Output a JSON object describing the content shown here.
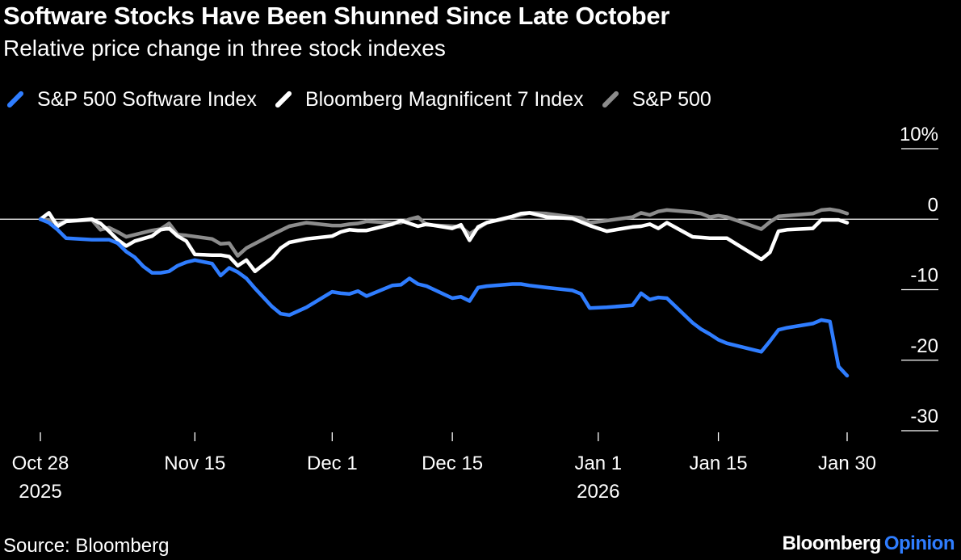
{
  "title": "Software Stocks Have Been Shunned Since Late October",
  "subtitle": "Relative price change in three stock indexes",
  "source": "Source: Bloomberg",
  "brand": {
    "name": "Bloomberg",
    "accent": "Opinion",
    "accent_color": "#2f7dff"
  },
  "chart_data": {
    "type": "line",
    "title": "Software Stocks Have Been Shunned Since Late October",
    "subtitle": "Relative price change in three stock indexes",
    "ylim": [
      -30,
      10
    ],
    "yticks": [
      10,
      0,
      -10,
      -20,
      -30
    ],
    "ytick_labels": [
      "10%",
      "0",
      "-10",
      "-20",
      "-30"
    ],
    "xlim": [
      "2025-10-28",
      "2026-01-30"
    ],
    "xticks": [
      {
        "date": "2025-10-28",
        "label": [
          "Oct 28",
          "2025"
        ]
      },
      {
        "date": "2025-11-15",
        "label": [
          "Nov 15"
        ]
      },
      {
        "date": "2025-12-01",
        "label": [
          "Dec 1"
        ]
      },
      {
        "date": "2025-12-15",
        "label": [
          "Dec 15"
        ]
      },
      {
        "date": "2026-01-01",
        "label": [
          "Jan 1",
          "2026"
        ]
      },
      {
        "date": "2026-01-15",
        "label": [
          "Jan 15"
        ]
      },
      {
        "date": "2026-01-30",
        "label": [
          "Jan 30"
        ]
      }
    ],
    "grid": false,
    "legend_position": "top-left",
    "series": [
      {
        "name": "S&P 500 Software Index",
        "color": "#2f7dff",
        "points": [
          [
            "2025-10-28",
            0.0
          ],
          [
            "2025-10-29",
            -0.5
          ],
          [
            "2025-10-30",
            -1.5
          ],
          [
            "2025-10-31",
            -2.7
          ],
          [
            "2025-11-03",
            -2.9
          ],
          [
            "2025-11-04",
            -2.9
          ],
          [
            "2025-11-05",
            -2.9
          ],
          [
            "2025-11-06",
            -3.4
          ],
          [
            "2025-11-07",
            -4.6
          ],
          [
            "2025-11-08",
            -5.4
          ],
          [
            "2025-11-09",
            -6.7
          ],
          [
            "2025-11-10",
            -7.6
          ],
          [
            "2025-11-11",
            -7.6
          ],
          [
            "2025-11-12",
            -7.4
          ],
          [
            "2025-11-13",
            -6.6
          ],
          [
            "2025-11-14",
            -6.1
          ],
          [
            "2025-11-15",
            -5.8
          ],
          [
            "2025-11-17",
            -6.3
          ],
          [
            "2025-11-18",
            -8.0
          ],
          [
            "2025-11-19",
            -6.9
          ],
          [
            "2025-11-20",
            -7.5
          ],
          [
            "2025-11-21",
            -8.4
          ],
          [
            "2025-11-22",
            -9.8
          ],
          [
            "2025-11-24",
            -12.4
          ],
          [
            "2025-11-25",
            -13.4
          ],
          [
            "2025-11-26",
            -13.6
          ],
          [
            "2025-11-28",
            -12.5
          ],
          [
            "2025-12-01",
            -10.3
          ],
          [
            "2025-12-02",
            -10.5
          ],
          [
            "2025-12-03",
            -10.6
          ],
          [
            "2025-12-04",
            -10.2
          ],
          [
            "2025-12-05",
            -10.9
          ],
          [
            "2025-12-08",
            -9.4
          ],
          [
            "2025-12-09",
            -9.3
          ],
          [
            "2025-12-10",
            -8.4
          ],
          [
            "2025-12-11",
            -9.2
          ],
          [
            "2025-12-12",
            -9.5
          ],
          [
            "2025-12-15",
            -11.2
          ],
          [
            "2025-12-16",
            -11.0
          ],
          [
            "2025-12-17",
            -11.6
          ],
          [
            "2025-12-18",
            -9.7
          ],
          [
            "2025-12-19",
            -9.5
          ],
          [
            "2025-12-22",
            -9.2
          ],
          [
            "2025-12-23",
            -9.2
          ],
          [
            "2025-12-24",
            -9.4
          ],
          [
            "2025-12-26",
            -9.7
          ],
          [
            "2025-12-29",
            -10.1
          ],
          [
            "2025-12-30",
            -10.6
          ],
          [
            "2025-12-31",
            -12.6
          ],
          [
            "2026-01-02",
            -12.5
          ],
          [
            "2026-01-05",
            -12.2
          ],
          [
            "2026-01-06",
            -10.5
          ],
          [
            "2026-01-07",
            -11.4
          ],
          [
            "2026-01-08",
            -11.1
          ],
          [
            "2026-01-09",
            -11.2
          ],
          [
            "2026-01-12",
            -14.7
          ],
          [
            "2026-01-13",
            -15.6
          ],
          [
            "2026-01-14",
            -16.3
          ],
          [
            "2026-01-15",
            -17.1
          ],
          [
            "2026-01-16",
            -17.6
          ],
          [
            "2026-01-20",
            -18.8
          ],
          [
            "2026-01-21",
            -17.3
          ],
          [
            "2026-01-22",
            -15.7
          ],
          [
            "2026-01-23",
            -15.4
          ],
          [
            "2026-01-26",
            -14.8
          ],
          [
            "2026-01-27",
            -14.3
          ],
          [
            "2026-01-28",
            -14.5
          ],
          [
            "2026-01-29",
            -20.9
          ],
          [
            "2026-01-30",
            -22.2
          ]
        ]
      },
      {
        "name": "Bloomberg Magnificent 7 Index",
        "color": "#ffffff",
        "points": [
          [
            "2025-10-28",
            0.0
          ],
          [
            "2025-10-29",
            0.9
          ],
          [
            "2025-10-30",
            -1.0
          ],
          [
            "2025-10-31",
            -0.3
          ],
          [
            "2025-11-03",
            0.0
          ],
          [
            "2025-11-04",
            -0.6
          ],
          [
            "2025-11-05",
            -1.7
          ],
          [
            "2025-11-06",
            -2.9
          ],
          [
            "2025-11-07",
            -3.8
          ],
          [
            "2025-11-08",
            -3.1
          ],
          [
            "2025-11-10",
            -2.4
          ],
          [
            "2025-11-11",
            -1.5
          ],
          [
            "2025-11-12",
            -1.3
          ],
          [
            "2025-11-13",
            -2.4
          ],
          [
            "2025-11-14",
            -3.1
          ],
          [
            "2025-11-15",
            -5.0
          ],
          [
            "2025-11-17",
            -5.1
          ],
          [
            "2025-11-18",
            -5.1
          ],
          [
            "2025-11-19",
            -5.3
          ],
          [
            "2025-11-20",
            -6.6
          ],
          [
            "2025-11-21",
            -5.8
          ],
          [
            "2025-11-22",
            -7.4
          ],
          [
            "2025-11-24",
            -5.5
          ],
          [
            "2025-11-25",
            -4.1
          ],
          [
            "2025-11-26",
            -3.3
          ],
          [
            "2025-11-28",
            -2.8
          ],
          [
            "2025-12-01",
            -2.4
          ],
          [
            "2025-12-02",
            -1.8
          ],
          [
            "2025-12-03",
            -1.5
          ],
          [
            "2025-12-04",
            -1.6
          ],
          [
            "2025-12-05",
            -1.6
          ],
          [
            "2025-12-08",
            -0.7
          ],
          [
            "2025-12-09",
            -0.2
          ],
          [
            "2025-12-10",
            -0.6
          ],
          [
            "2025-12-11",
            -1.0
          ],
          [
            "2025-12-12",
            -0.7
          ],
          [
            "2025-12-15",
            -1.3
          ],
          [
            "2025-12-16",
            -0.8
          ],
          [
            "2025-12-17",
            -3.0
          ],
          [
            "2025-12-18",
            -1.1
          ],
          [
            "2025-12-19",
            -0.5
          ],
          [
            "2025-12-22",
            0.4
          ],
          [
            "2025-12-23",
            0.8
          ],
          [
            "2025-12-24",
            0.9
          ],
          [
            "2025-12-26",
            0.3
          ],
          [
            "2025-12-29",
            0.1
          ],
          [
            "2025-12-30",
            -0.4
          ],
          [
            "2025-12-31",
            -0.9
          ],
          [
            "2026-01-02",
            -1.7
          ],
          [
            "2026-01-05",
            -1.1
          ],
          [
            "2026-01-06",
            -1.0
          ],
          [
            "2026-01-07",
            -0.7
          ],
          [
            "2026-01-08",
            -1.3
          ],
          [
            "2026-01-09",
            -0.5
          ],
          [
            "2026-01-12",
            -2.5
          ],
          [
            "2026-01-13",
            -2.6
          ],
          [
            "2026-01-14",
            -2.7
          ],
          [
            "2026-01-15",
            -2.7
          ],
          [
            "2026-01-16",
            -2.7
          ],
          [
            "2026-01-20",
            -5.7
          ],
          [
            "2026-01-21",
            -4.7
          ],
          [
            "2026-01-22",
            -1.7
          ],
          [
            "2026-01-23",
            -1.5
          ],
          [
            "2026-01-26",
            -1.3
          ],
          [
            "2026-01-27",
            -0.1
          ],
          [
            "2026-01-28",
            -0.1
          ],
          [
            "2026-01-29",
            -0.1
          ],
          [
            "2026-01-30",
            -0.5
          ]
        ]
      },
      {
        "name": "S&P 500",
        "color": "#8c8c8c",
        "points": [
          [
            "2025-10-28",
            0.0
          ],
          [
            "2025-10-29",
            -0.1
          ],
          [
            "2025-10-30",
            -0.6
          ],
          [
            "2025-10-31",
            -0.3
          ],
          [
            "2025-11-03",
            -0.1
          ],
          [
            "2025-11-04",
            -1.5
          ],
          [
            "2025-11-05",
            -1.2
          ],
          [
            "2025-11-06",
            -1.8
          ],
          [
            "2025-11-07",
            -2.5
          ],
          [
            "2025-11-10",
            -1.6
          ],
          [
            "2025-11-11",
            -1.4
          ],
          [
            "2025-11-12",
            -0.6
          ],
          [
            "2025-11-13",
            -2.2
          ],
          [
            "2025-11-14",
            -2.3
          ],
          [
            "2025-11-17",
            -2.8
          ],
          [
            "2025-11-18",
            -3.5
          ],
          [
            "2025-11-19",
            -3.4
          ],
          [
            "2025-11-20",
            -5.2
          ],
          [
            "2025-11-21",
            -4.1
          ],
          [
            "2025-11-24",
            -2.2
          ],
          [
            "2025-11-25",
            -1.6
          ],
          [
            "2025-11-26",
            -1.0
          ],
          [
            "2025-11-28",
            -0.5
          ],
          [
            "2025-12-01",
            -0.9
          ],
          [
            "2025-12-02",
            -0.9
          ],
          [
            "2025-12-03",
            -0.7
          ],
          [
            "2025-12-04",
            -0.6
          ],
          [
            "2025-12-05",
            -0.3
          ],
          [
            "2025-12-08",
            -0.5
          ],
          [
            "2025-12-09",
            -0.5
          ],
          [
            "2025-12-10",
            0.0
          ],
          [
            "2025-12-11",
            0.3
          ],
          [
            "2025-12-12",
            -0.8
          ],
          [
            "2025-12-15",
            -1.0
          ],
          [
            "2025-12-16",
            -1.1
          ],
          [
            "2025-12-17",
            -2.1
          ],
          [
            "2025-12-18",
            -1.3
          ],
          [
            "2025-12-19",
            -0.5
          ],
          [
            "2025-12-22",
            0.3
          ],
          [
            "2025-12-23",
            0.6
          ],
          [
            "2025-12-24",
            0.9
          ],
          [
            "2025-12-26",
            0.8
          ],
          [
            "2025-12-29",
            0.3
          ],
          [
            "2025-12-30",
            0.2
          ],
          [
            "2025-12-31",
            -0.5
          ],
          [
            "2026-01-02",
            -0.2
          ],
          [
            "2026-01-05",
            0.3
          ],
          [
            "2026-01-06",
            0.9
          ],
          [
            "2026-01-07",
            0.6
          ],
          [
            "2026-01-08",
            1.1
          ],
          [
            "2026-01-09",
            1.3
          ],
          [
            "2026-01-12",
            1.0
          ],
          [
            "2026-01-13",
            0.8
          ],
          [
            "2026-01-14",
            0.3
          ],
          [
            "2026-01-15",
            0.5
          ],
          [
            "2026-01-16",
            0.3
          ],
          [
            "2026-01-20",
            -1.4
          ],
          [
            "2026-01-21",
            -0.4
          ],
          [
            "2026-01-22",
            0.4
          ],
          [
            "2026-01-23",
            0.5
          ],
          [
            "2026-01-26",
            0.8
          ],
          [
            "2026-01-27",
            1.3
          ],
          [
            "2026-01-28",
            1.4
          ],
          [
            "2026-01-29",
            1.2
          ],
          [
            "2026-01-30",
            0.8
          ]
        ]
      }
    ]
  }
}
